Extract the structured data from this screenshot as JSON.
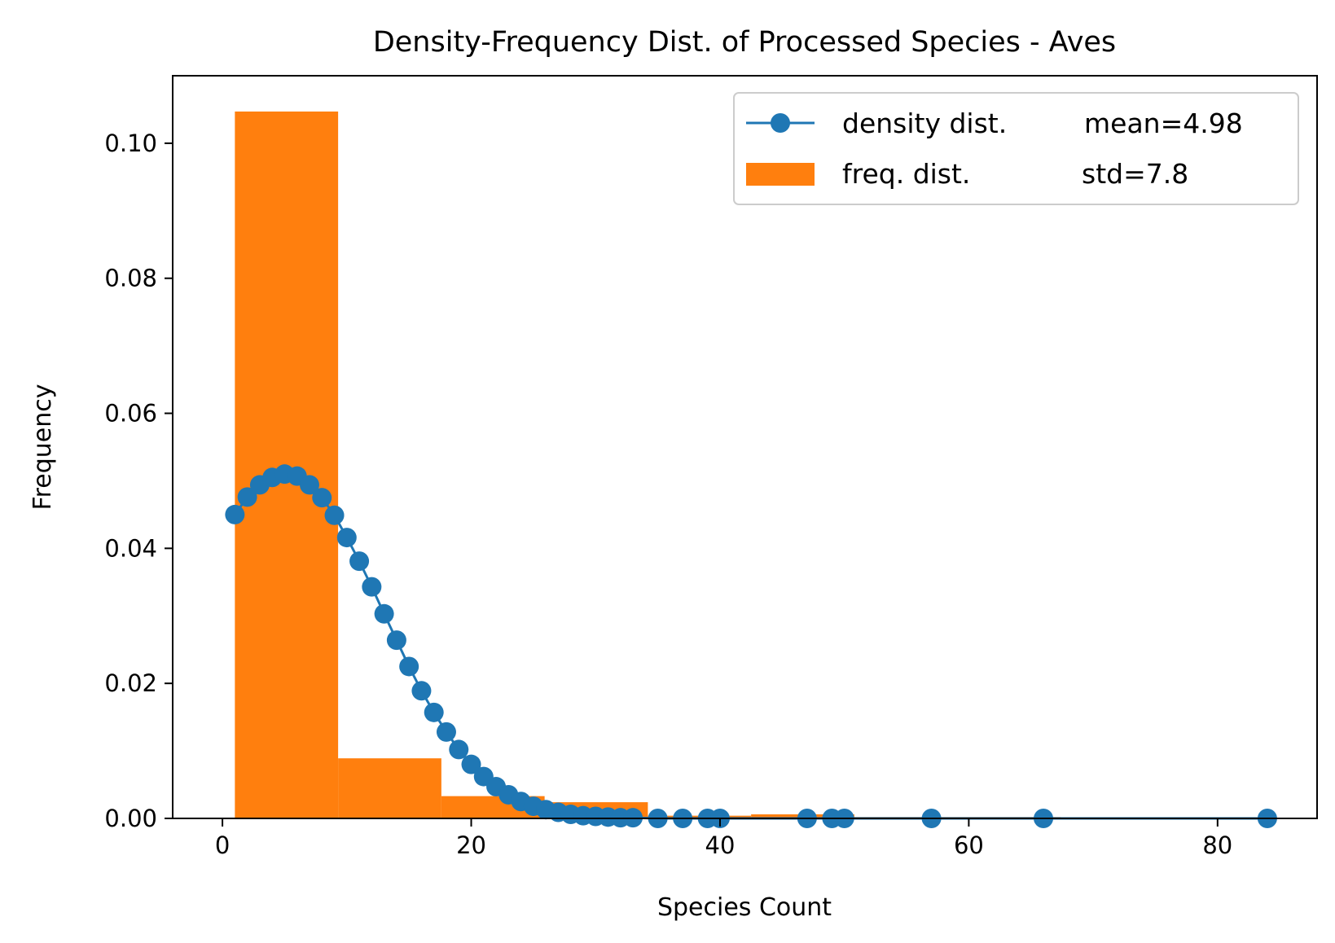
{
  "chart_data": {
    "type": "bar",
    "title": "Density-Frequency Dist. of Processed Species - Aves",
    "xlabel": "Species Count",
    "ylabel": "Frequency",
    "xlim": [
      -4,
      88
    ],
    "ylim": [
      0,
      0.11
    ],
    "xticks": [
      0,
      20,
      40,
      60,
      80
    ],
    "yticks": [
      0.0,
      0.02,
      0.04,
      0.06,
      0.08,
      0.1
    ],
    "xtick_labels": [
      "0",
      "20",
      "40",
      "60",
      "80"
    ],
    "ytick_labels": [
      "0.00",
      "0.02",
      "0.04",
      "0.06",
      "0.08",
      "0.10"
    ],
    "grid": false,
    "legend_position": "top-right",
    "colors": {
      "density": "#1f77b4",
      "freq": "#ff7f0e"
    },
    "series": [
      {
        "name": "freq. dist.",
        "kind": "histogram",
        "bins": [
          {
            "x0": 1.0,
            "x1": 9.3,
            "value": 0.1047
          },
          {
            "x0": 9.3,
            "x1": 17.6,
            "value": 0.0089
          },
          {
            "x0": 17.6,
            "x1": 25.9,
            "value": 0.0033
          },
          {
            "x0": 25.9,
            "x1": 34.2,
            "value": 0.0024
          },
          {
            "x0": 34.2,
            "x1": 42.5,
            "value": 0.0004
          },
          {
            "x0": 42.5,
            "x1": 50.8,
            "value": 0.0006
          },
          {
            "x0": 50.8,
            "x1": 59.1,
            "value": 0.0002
          },
          {
            "x0": 59.1,
            "x1": 67.4,
            "value": 0.0002
          },
          {
            "x0": 67.4,
            "x1": 75.7,
            "value": 0.0
          },
          {
            "x0": 75.7,
            "x1": 84.0,
            "value": 0.0001
          }
        ]
      },
      {
        "name": "density dist.",
        "kind": "line-marker",
        "x": [
          1,
          2,
          3,
          4,
          5,
          6,
          7,
          8,
          9,
          10,
          11,
          12,
          13,
          14,
          15,
          16,
          17,
          18,
          19,
          20,
          21,
          22,
          23,
          24,
          25,
          26,
          27,
          28,
          29,
          30,
          31,
          32,
          33,
          35,
          37,
          39,
          40,
          47,
          49,
          50,
          57,
          66,
          84
        ],
        "y": [
          0.045,
          0.0476,
          0.0494,
          0.0505,
          0.051,
          0.0507,
          0.0494,
          0.0475,
          0.0449,
          0.0416,
          0.0381,
          0.0343,
          0.0303,
          0.0264,
          0.0225,
          0.0189,
          0.0157,
          0.0128,
          0.0102,
          0.008,
          0.0062,
          0.0047,
          0.0035,
          0.0025,
          0.0018,
          0.0013,
          0.0009,
          0.0006,
          0.0004,
          0.0003,
          0.0002,
          0.0001,
          0.0001,
          0.0,
          0.0,
          0.0,
          0.0,
          0.0,
          0.0,
          0.0,
          0.0,
          0.0,
          0.0
        ]
      }
    ],
    "legend": [
      {
        "label": "density dist.",
        "stat": "mean=4.98"
      },
      {
        "label": "freq. dist.",
        "stat": "std=7.8"
      }
    ]
  }
}
